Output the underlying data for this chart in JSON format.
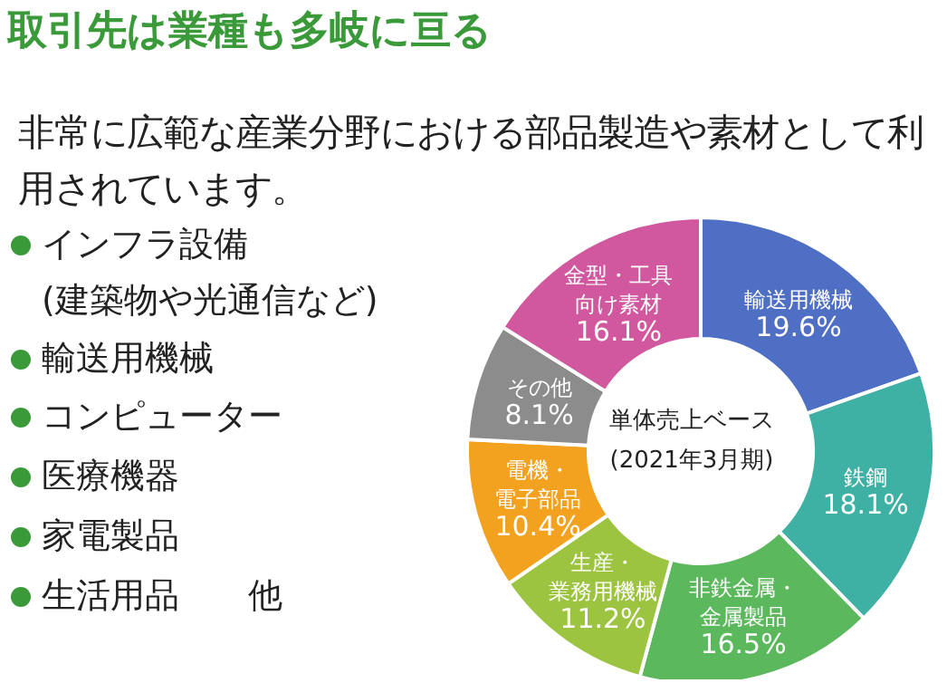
{
  "chart_data": {
    "type": "donut",
    "title": "取引先は業種も多岐に亘る",
    "subtitle": "非常に広範な産業分野における部品製造や素材として利用されています。",
    "categories": [
      "輸送用機械",
      "鉄鋼",
      "非鉄金属・金属製品",
      "生産・業務用機械",
      "電機・電子部品",
      "その他",
      "金型・工具向け素材"
    ],
    "values": [
      19.6,
      18.1,
      16.5,
      11.2,
      10.4,
      8.1,
      16.1
    ],
    "value_labels": [
      "19.6%",
      "18.1%",
      "16.5%",
      "11.2%",
      "10.4%",
      "8.1%",
      "16.1%"
    ],
    "colors": [
      "#4f6fc4",
      "#3fb0a4",
      "#5cb85c",
      "#9cc440",
      "#f2a21e",
      "#8c8c8c",
      "#d1589e"
    ],
    "annotations": [
      "単体売上ベース\n(2021年3月期)",
      "インフラ設備\n(建築物や光通信など)",
      "輸送用機械",
      "コンピューター",
      "医療機器",
      "家電製品",
      "生活用品　　他"
    ]
  }
}
